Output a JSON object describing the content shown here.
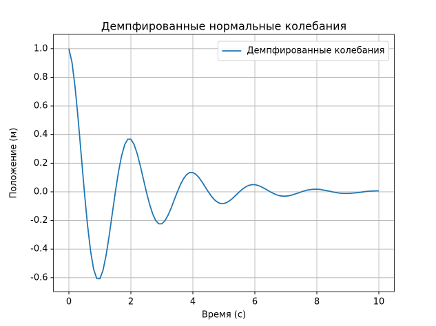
{
  "chart_data": {
    "type": "line",
    "title": "Демпфированные нормальные колебания",
    "x_label": "Время (с)",
    "y_label": "Положение (м)",
    "x": [
      0,
      0.1,
      0.2,
      0.3,
      0.4,
      0.5,
      0.6,
      0.7,
      0.8,
      0.9,
      1,
      1.1,
      1.2,
      1.3,
      1.4,
      1.5,
      1.6,
      1.7,
      1.8,
      1.9,
      2,
      2.1,
      2.2,
      2.3,
      2.4,
      2.5,
      2.6,
      2.7,
      2.8,
      2.9,
      3,
      3.1,
      3.2,
      3.3,
      3.4,
      3.5,
      3.6,
      3.7,
      3.8,
      3.9,
      4,
      4.1,
      4.2,
      4.3,
      4.4,
      4.5,
      4.6,
      4.7,
      4.8,
      4.9,
      5,
      5.1,
      5.2,
      5.3,
      5.4,
      5.5,
      5.6,
      5.7,
      5.8,
      5.9,
      6,
      6.1,
      6.2,
      6.3,
      6.4,
      6.5,
      6.6,
      6.7,
      6.8,
      6.9,
      7,
      7.1,
      7.2,
      7.3,
      7.4,
      7.5,
      7.6,
      7.7,
      7.8,
      7.9,
      8,
      8.1,
      8.2,
      8.3,
      8.4,
      8.5,
      8.6,
      8.7,
      8.8,
      8.9,
      9,
      9.1,
      9.2,
      9.3,
      9.4,
      9.5,
      9.6,
      9.7,
      9.8,
      9.9,
      10
    ],
    "series": [
      {
        "name": "Демпфированные колебания",
        "color": "#1f77b4",
        "values": [
          1,
          0.905,
          0.732,
          0.506,
          0.253,
          0,
          -0.229,
          -0.414,
          -0.542,
          -0.606,
          -0.607,
          -0.549,
          -0.444,
          -0.307,
          -0.153,
          0,
          0.139,
          0.251,
          0.329,
          0.368,
          0.368,
          0.333,
          0.269,
          0.186,
          0.093,
          0,
          -0.084,
          -0.152,
          -0.2,
          -0.223,
          -0.223,
          -0.202,
          -0.163,
          -0.113,
          -0.056,
          0,
          0.051,
          0.092,
          0.121,
          0.135,
          0.135,
          0.122,
          0.099,
          0.068,
          0.034,
          0,
          -0.031,
          -0.056,
          -0.073,
          -0.082,
          -0.082,
          -0.074,
          -0.06,
          -0.042,
          -0.021,
          0,
          0.019,
          0.034,
          0.045,
          0.05,
          0.05,
          0.045,
          0.036,
          0.025,
          0.013,
          0,
          -0.011,
          -0.021,
          -0.027,
          -0.03,
          -0.03,
          -0.027,
          -0.022,
          -0.015,
          -0.008,
          0,
          0.007,
          0.013,
          0.016,
          0.018,
          0.018,
          0.017,
          0.013,
          0.009,
          0.005,
          0,
          -0.004,
          -0.008,
          -0.01,
          -0.011,
          -0.011,
          -0.01,
          -0.008,
          -0.006,
          -0.003,
          0,
          0.003,
          0.005,
          0.006,
          0.007,
          0.007
        ]
      }
    ],
    "xlim": [
      -0.5,
      10.5
    ],
    "ylim": [
      -0.697,
      1.1
    ],
    "xticks": [
      0,
      2,
      4,
      6,
      8,
      10
    ],
    "yticks": [
      {
        "value": -0.6,
        "label": "-0.6"
      },
      {
        "value": -0.4,
        "label": "-0.4"
      },
      {
        "value": -0.2,
        "label": "-0.2"
      },
      {
        "value": 0,
        "label": "0.0"
      },
      {
        "value": 0.2,
        "label": "0.2"
      },
      {
        "value": 0.4,
        "label": "0.4"
      },
      {
        "value": 0.6,
        "label": "0.6"
      },
      {
        "value": 0.8,
        "label": "0.8"
      },
      {
        "value": 1.0,
        "label": "1.0"
      }
    ],
    "grid": true,
    "legend": "upper-right"
  }
}
